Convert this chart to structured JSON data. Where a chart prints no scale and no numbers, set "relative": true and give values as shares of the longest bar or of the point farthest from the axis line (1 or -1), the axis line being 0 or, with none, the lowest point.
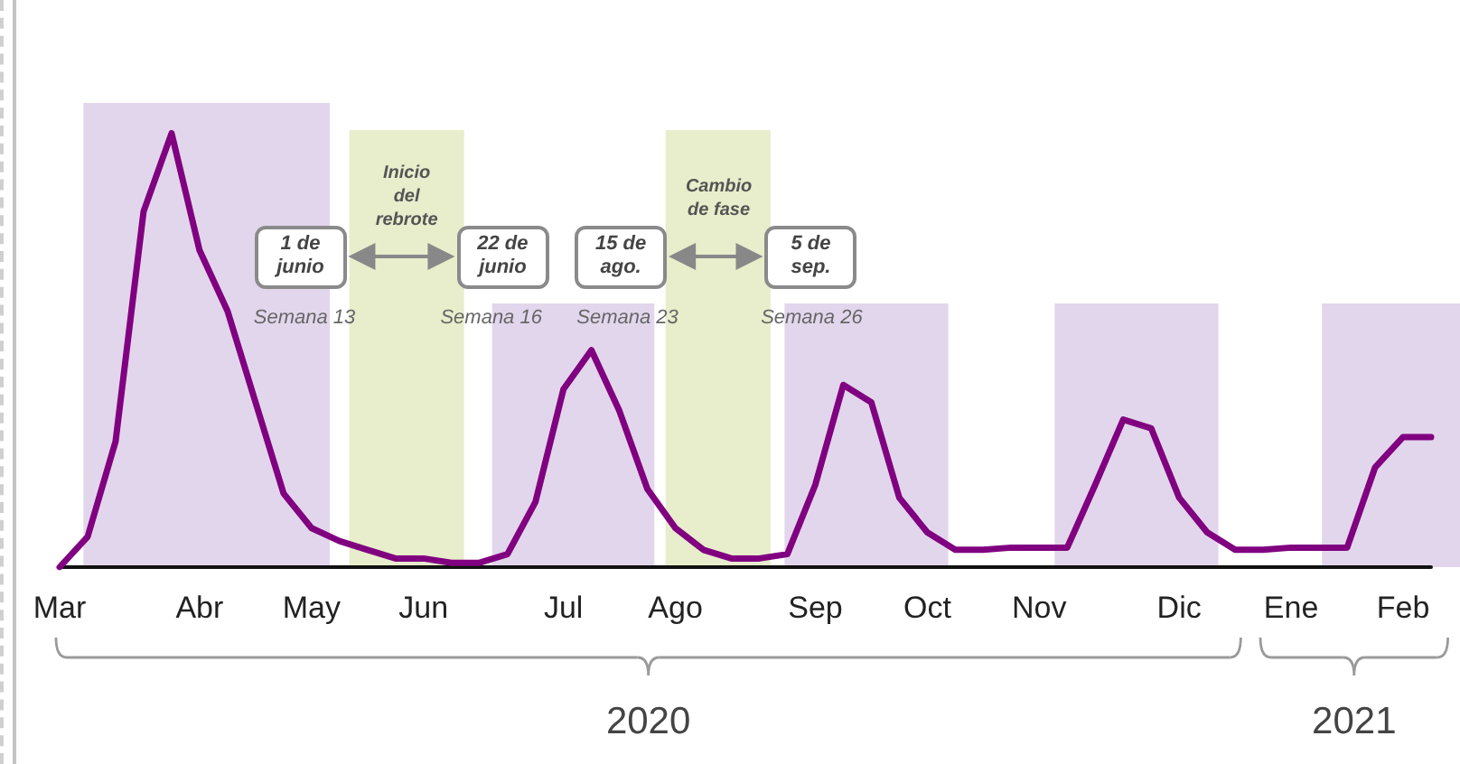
{
  "chart_data": {
    "type": "line",
    "relative": true,
    "categories": [
      "Mar",
      null,
      null,
      null,
      null,
      "Abr",
      null,
      null,
      null,
      "May",
      null,
      null,
      null,
      "Jun",
      null,
      null,
      null,
      null,
      "Jul",
      null,
      null,
      null,
      "Ago",
      null,
      null,
      null,
      null,
      "Sep",
      null,
      null,
      null,
      "Oct",
      null,
      null,
      null,
      "Nov",
      null,
      null,
      null,
      null,
      "Dic",
      null,
      null,
      null,
      "Ene",
      null,
      null,
      null,
      "Feb",
      null
    ],
    "values": [
      0,
      0.07,
      0.29,
      0.82,
      1,
      0.73,
      0.59,
      0.38,
      0.17,
      0.09,
      0.06,
      0.04,
      0.02,
      0.02,
      0.01,
      0.01,
      0.03,
      0.15,
      0.41,
      0.5,
      0.36,
      0.18,
      0.09,
      0.04,
      0.02,
      0.02,
      0.03,
      0.19,
      0.42,
      0.38,
      0.16,
      0.08,
      0.04,
      0.04,
      0.045,
      0.045,
      0.045,
      0.19,
      0.34,
      0.32,
      0.16,
      0.08,
      0.04,
      0.04,
      0.045,
      0.045,
      0.045,
      0.23,
      0.3,
      0.3
    ],
    "color": "#800080",
    "annotations": [
      "Inicio del rebrote",
      "Cambio de fase",
      "1 de junio",
      "22 de junio",
      "15 de ago.",
      "5 de sep.",
      "Semana 13",
      "Semana 16",
      "Semana 23",
      "Semana 26",
      "2020",
      "2021"
    ]
  }
}
